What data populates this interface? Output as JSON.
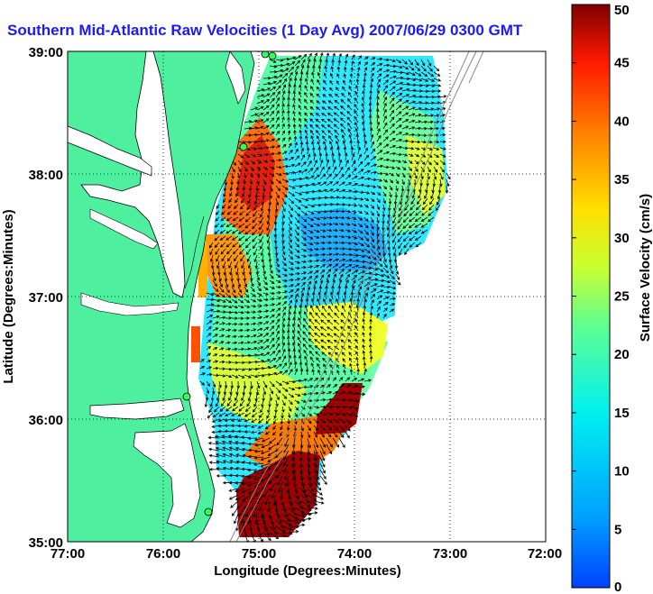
{
  "title": "Southern Mid-Atlantic Raw Velocities (1 Day Avg) 2007/06/29 0300 GMT",
  "map": {
    "x_label": "Longitude (Degrees:Minutes)",
    "y_label": "Latitude (Degrees:Minutes)",
    "x_ticks": [
      "77:00",
      "76:00",
      "75:00",
      "74:00",
      "73:00",
      "72:00"
    ],
    "y_ticks": [
      "39:00",
      "38:00",
      "37:00",
      "36:00",
      "35:00"
    ],
    "lon_range": [
      -77,
      -72
    ],
    "lat_range": [
      35,
      39
    ],
    "grid": "dotted",
    "land_color": "#4ef0a0",
    "coast_color": "#000000",
    "vector_color": "#000000"
  },
  "colorbar": {
    "label": "Surface Velocity (cm/s)",
    "ticks": [
      "50",
      "45",
      "40",
      "35",
      "30",
      "25",
      "20",
      "15",
      "10",
      "5",
      "0"
    ],
    "range": [
      0,
      50
    ],
    "colormap": "jet"
  }
}
